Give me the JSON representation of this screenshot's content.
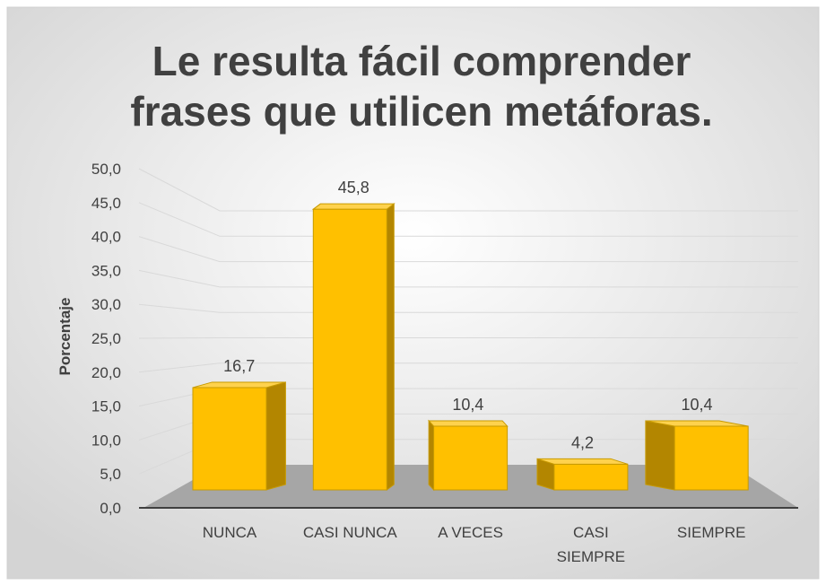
{
  "chart_data": {
    "type": "bar3d",
    "title": "Le resulta fácil comprender frases que utilicen metáforas.",
    "y_label": "Porcentaje",
    "categories": [
      "NUNCA",
      "CASI NUNCA",
      "A VECES",
      "CASI SIEMPRE",
      "SIEMPRE"
    ],
    "values": [
      16.7,
      45.8,
      10.4,
      4.2,
      10.4
    ],
    "value_labels": [
      "16,7",
      "45,8",
      "10,4",
      "4,2",
      "10,4"
    ],
    "color": "#ffc000",
    "ylim": [
      0,
      50
    ],
    "yticks": [
      {
        "value": 0,
        "label": "0,0"
      },
      {
        "value": 5,
        "label": "5,0"
      },
      {
        "value": 10,
        "label": "10,0"
      },
      {
        "value": 15,
        "label": "15,0"
      },
      {
        "value": 20,
        "label": "20,0"
      },
      {
        "value": 25,
        "label": "25,0"
      },
      {
        "value": 30,
        "label": "30,0"
      },
      {
        "value": 35,
        "label": "35,0"
      },
      {
        "value": 40,
        "label": "40,0"
      },
      {
        "value": 45,
        "label": "45,0"
      },
      {
        "value": 50,
        "label": "50,0"
      }
    ],
    "grid": true
  }
}
